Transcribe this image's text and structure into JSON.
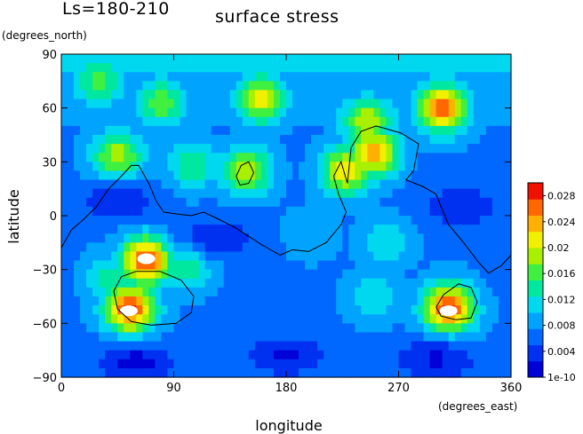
{
  "chart_data": {
    "type": "heatmap",
    "season_label": "Ls=180-210",
    "title": "surface stress",
    "xlabel": "longitude",
    "ylabel": "latitude",
    "x_unit": "(degrees_east)",
    "y_unit": "(degrees_north)",
    "xlim": [
      0,
      360
    ],
    "ylim": [
      -90,
      90
    ],
    "x_ticks": [
      "0",
      "90",
      "180",
      "270",
      "360"
    ],
    "x_tick_values": [
      0,
      90,
      180,
      270,
      360
    ],
    "y_ticks": [
      "90",
      "60",
      "30",
      "0",
      "−30",
      "−60",
      "−90"
    ],
    "y_tick_values": [
      90,
      60,
      30,
      0,
      -30,
      -60,
      -90
    ],
    "colorbar": {
      "range": [
        0,
        0.03
      ],
      "tick_labels": [
        "0.028",
        "0.024",
        "0.02",
        "0.016",
        "0.012",
        "0.008",
        "0.004",
        "1e-10"
      ],
      "tick_values": [
        0.028,
        0.024,
        0.02,
        0.016,
        0.012,
        0.008,
        0.004,
        0.0
      ],
      "colors": [
        "#0000d8",
        "#0030f0",
        "#0068ff",
        "#00a4ff",
        "#00d8f0",
        "#00e8a0",
        "#40f040",
        "#a8f000",
        "#f0f000",
        "#ffb000",
        "#ff6800",
        "#f01000"
      ]
    },
    "background_value": 0.007,
    "hotspots": [
      {
        "lon": 305,
        "lat": 60,
        "value": 0.026
      },
      {
        "lon": 250,
        "lat": 35,
        "value": 0.024
      },
      {
        "lon": 245,
        "lat": 52,
        "value": 0.02
      },
      {
        "lon": 160,
        "lat": 65,
        "value": 0.021
      },
      {
        "lon": 80,
        "lat": 63,
        "value": 0.017
      },
      {
        "lon": 30,
        "lat": 75,
        "value": 0.016
      },
      {
        "lon": 45,
        "lat": 33,
        "value": 0.019
      },
      {
        "lon": 148,
        "lat": 25,
        "value": 0.02
      },
      {
        "lon": 105,
        "lat": 28,
        "value": 0.015
      },
      {
        "lon": 228,
        "lat": 25,
        "value": 0.022
      },
      {
        "lon": 68,
        "lat": -25,
        "value": 0.028
      },
      {
        "lon": 55,
        "lat": -52,
        "value": 0.028
      },
      {
        "lon": 100,
        "lat": -28,
        "value": 0.015
      },
      {
        "lon": 40,
        "lat": -35,
        "value": 0.014
      },
      {
        "lon": 310,
        "lat": -52,
        "value": 0.028
      },
      {
        "lon": 260,
        "lat": -15,
        "value": 0.012
      },
      {
        "lon": 200,
        "lat": -10,
        "value": 0.01
      },
      {
        "lon": 250,
        "lat": -45,
        "value": 0.012
      }
    ],
    "low_zones": [
      {
        "lon": 180,
        "lat": -78,
        "value": 0.002
      },
      {
        "lon": 60,
        "lat": -82,
        "value": 0.0015
      },
      {
        "lon": 300,
        "lat": -80,
        "value": 0.002
      },
      {
        "lon": 45,
        "lat": 8,
        "value": 0.003
      },
      {
        "lon": 125,
        "lat": -12,
        "value": 0.003
      },
      {
        "lon": 320,
        "lat": 5,
        "value": 0.003
      }
    ],
    "saturated_regions": [
      {
        "lon": 68,
        "lat": -24
      },
      {
        "lon": 54,
        "lat": -53
      },
      {
        "lon": 310,
        "lat": -53
      }
    ],
    "contour_lines": {
      "topography": [
        [
          0,
          -18
        ],
        [
          8,
          -8
        ],
        [
          18,
          -2
        ],
        [
          28,
          5
        ],
        [
          38,
          15
        ],
        [
          48,
          22
        ],
        [
          56,
          28
        ],
        [
          62,
          28
        ],
        [
          70,
          18
        ],
        [
          76,
          8
        ],
        [
          82,
          2
        ],
        [
          92,
          1
        ],
        [
          104,
          0
        ],
        [
          114,
          2
        ],
        [
          126,
          -2
        ],
        [
          140,
          -7
        ],
        [
          160,
          -16
        ],
        [
          175,
          -22
        ],
        [
          185,
          -19
        ],
        [
          198,
          -20
        ],
        [
          212,
          -15
        ],
        [
          224,
          -5
        ],
        [
          228,
          2
        ],
        [
          222,
          12
        ],
        [
          218,
          22
        ],
        [
          224,
          30
        ],
        [
          229,
          18
        ],
        [
          232,
          38
        ],
        [
          240,
          47
        ],
        [
          252,
          50
        ],
        [
          272,
          46
        ],
        [
          286,
          40
        ],
        [
          282,
          25
        ],
        [
          276,
          20
        ],
        [
          290,
          16
        ],
        [
          300,
          12
        ],
        [
          304,
          5
        ],
        [
          310,
          -5
        ],
        [
          322,
          -15
        ],
        [
          334,
          -26
        ],
        [
          342,
          -32
        ],
        [
          352,
          -28
        ],
        [
          360,
          -22
        ]
      ],
      "argyre": [
        [
          60,
          -31
        ],
        [
          79,
          -31
        ],
        [
          96,
          -36
        ],
        [
          106,
          -45
        ],
        [
          104,
          -54
        ],
        [
          92,
          -60
        ],
        [
          72,
          -61
        ],
        [
          56,
          -59
        ],
        [
          45,
          -52
        ],
        [
          42,
          -42
        ],
        [
          48,
          -34
        ],
        [
          60,
          -31
        ]
      ],
      "hellas": [
        [
          300,
          -51
        ],
        [
          306,
          -44
        ],
        [
          318,
          -38
        ],
        [
          328,
          -40
        ],
        [
          333,
          -48
        ],
        [
          328,
          -57
        ],
        [
          316,
          -58
        ],
        [
          304,
          -56
        ],
        [
          300,
          -51
        ]
      ],
      "olympus": [
        [
          140,
          22
        ],
        [
          144,
          28
        ],
        [
          150,
          30
        ],
        [
          154,
          24
        ],
        [
          150,
          18
        ],
        [
          143,
          17
        ],
        [
          140,
          22
        ]
      ]
    }
  }
}
